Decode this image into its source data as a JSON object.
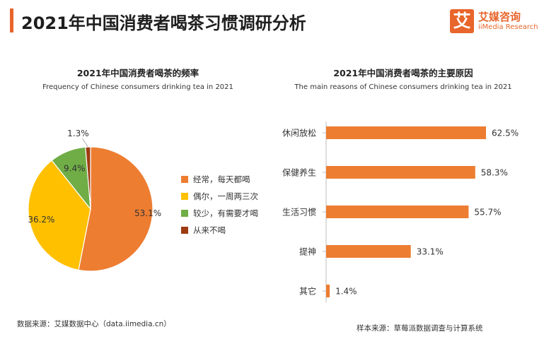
{
  "header": {
    "title": "2021年中国消费者喝茶习惯调研分析",
    "logo_char": "艾",
    "logo_cn": "艾媒咨询",
    "logo_en": "iiMedia Research",
    "accent": "#e8652b"
  },
  "chart_data": [
    {
      "type": "pie",
      "title": "2021年中国消费者喝茶的频率",
      "subtitle": "Frequency of Chinese consumers drinking tea in 2021",
      "categories": [
        "经常，每天都喝",
        "偶尔，一周两三次",
        "较少，有需要才喝",
        "从来不喝"
      ],
      "values": [
        53.1,
        36.2,
        9.4,
        1.3
      ],
      "labels": [
        "53.1%",
        "36.2%",
        "9.4%",
        "1.3%"
      ],
      "colors": [
        "#ed7d31",
        "#ffc000",
        "#70ad47",
        "#9e3b12"
      ],
      "legend": "right"
    },
    {
      "type": "bar",
      "orientation": "horizontal",
      "title": "2021年中国消费者喝茶的主要原因",
      "subtitle": "The main reasons of Chinese consumers drinking tea in 2021",
      "categories": [
        "休闲放松",
        "保健养生",
        "生活习惯",
        "提神",
        "其它"
      ],
      "values": [
        62.5,
        58.3,
        55.7,
        33.1,
        1.4
      ],
      "labels": [
        "62.5%",
        "58.3%",
        "55.7%",
        "33.1%",
        "1.4%"
      ],
      "color": "#ed7d31",
      "grid": false
    }
  ],
  "footer": {
    "source_left": "数据来源：艾媒数据中心（data.iimedia.cn）",
    "source_right": "样本来源：草莓派数据调查与计算系统"
  }
}
